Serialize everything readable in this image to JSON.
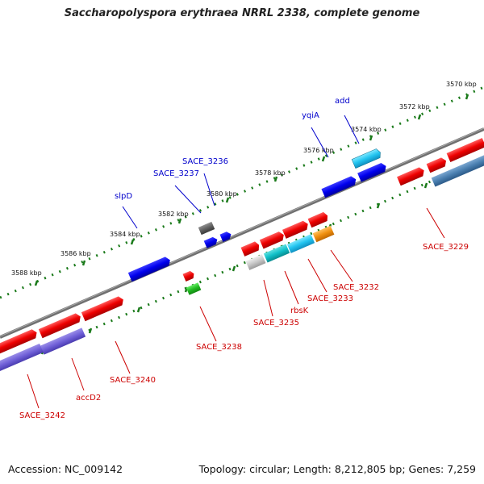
{
  "title": "Saccharopolyspora erythraea NRRL 2338, complete genome",
  "footer": {
    "accession": "Accession: NC_009142",
    "topology": "Topology: circular; Length: 8,212,805 bp; Genes: 7,259"
  },
  "colors": {
    "label_upper": "#0000cc",
    "label_lower": "#cc0000",
    "backbone": "#707070",
    "ruler": "#1a7a1a"
  },
  "ruler_labels_upper": [
    "3570 kbp",
    "3572 kbp",
    "3574 kbp",
    "3576 kbp",
    "3578 kbp",
    "3580 kbp",
    "3582 kbp",
    "3584 kbp",
    "3586 kbp",
    "3588 kbp"
  ],
  "gene_labels_upper": [
    "add",
    "yqiA",
    "SACE_3236",
    "SACE_3237",
    "slpD"
  ],
  "gene_labels_lower": [
    "SACE_3229",
    "SACE_3232",
    "SACE_3233",
    "rbsK",
    "SACE_3235",
    "SACE_3238",
    "SACE_3240",
    "accD2",
    "SACE_3242"
  ]
}
